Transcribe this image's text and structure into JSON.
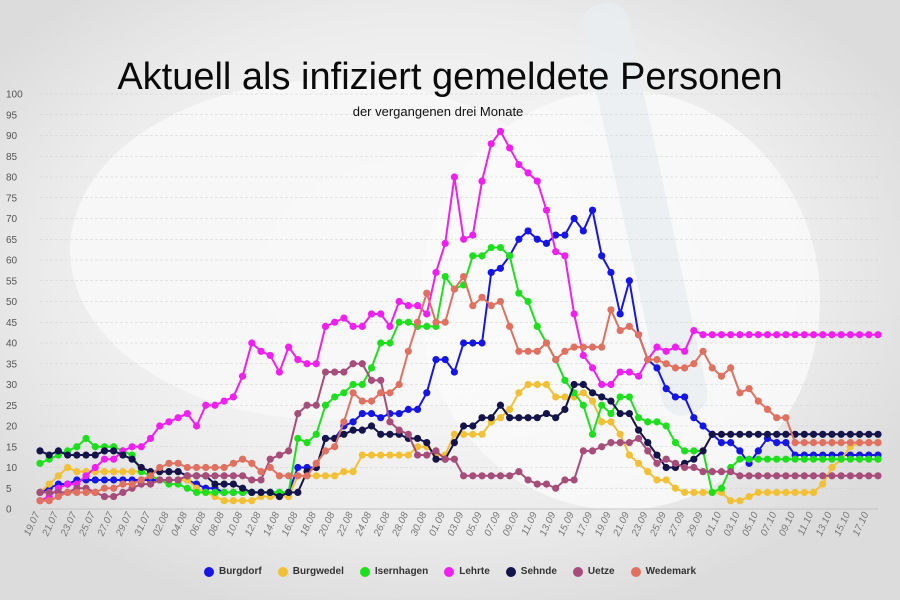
{
  "chart_data": {
    "type": "line",
    "title": "Aktuell als infiziert gemeldete Personen",
    "subtitle": "der vergangenen drei Monate",
    "xlabel": "",
    "ylabel": "",
    "ylim": [
      0,
      100
    ],
    "yticks": [
      "0",
      "5",
      "10",
      "15",
      "20",
      "25",
      "30",
      "35",
      "40",
      "45",
      "50",
      "55",
      "60",
      "65",
      "70",
      "75",
      "80",
      "85",
      "90",
      "95",
      "100"
    ],
    "grid": "horizontal",
    "legend_position": "bottom",
    "x": [
      "19.07",
      "20.07",
      "21.07",
      "22.07",
      "23.07",
      "24.07",
      "25.07",
      "26.07",
      "27.07",
      "28.07",
      "29.07",
      "30.07",
      "31.07",
      "01.08",
      "02.08",
      "03.08",
      "04.08",
      "05.08",
      "06.08",
      "07.08",
      "08.08",
      "09.08",
      "10.08",
      "11.08",
      "12.08",
      "13.08",
      "14.08",
      "15.08",
      "16.08",
      "17.08",
      "18.08",
      "19.08",
      "20.08",
      "21.08",
      "22.08",
      "23.08",
      "24.08",
      "25.08",
      "26.08",
      "27.08",
      "28.08",
      "29.08",
      "30.08",
      "31.08",
      "01.09",
      "02.09",
      "03.09",
      "04.09",
      "05.09",
      "06.09",
      "07.09",
      "08.09",
      "09.09",
      "10.09",
      "11.09",
      "12.09",
      "13.09",
      "14.09",
      "15.09",
      "16.09",
      "17.09",
      "18.09",
      "19.09",
      "20.09",
      "21.09",
      "22.09",
      "23.09",
      "24.09",
      "25.09",
      "26.09",
      "27.09",
      "28.09",
      "29.09",
      "30.09",
      "01.10",
      "02.10",
      "03.10",
      "04.10",
      "05.10",
      "06.10",
      "07.10",
      "08.10",
      "09.10",
      "10.10",
      "11.10",
      "12.10",
      "13.10",
      "14.10",
      "15.10",
      "16.10",
      "17.10",
      "18.10"
    ],
    "x_labels_every": 2,
    "series": [
      {
        "name": "Burgdorf",
        "color": "#1515e6",
        "values": [
          4,
          5,
          6,
          6,
          7,
          7,
          7,
          7,
          7,
          7,
          7,
          7,
          7,
          7,
          7,
          7,
          7,
          6,
          5,
          5,
          4,
          4,
          4,
          4,
          4,
          4,
          4,
          4,
          10,
          10,
          10,
          17,
          17,
          20,
          21,
          23,
          23,
          22,
          23,
          23,
          24,
          24,
          28,
          36,
          36,
          33,
          40,
          40,
          40,
          57,
          58,
          61,
          65,
          67,
          65,
          64,
          66,
          66,
          70,
          67,
          72,
          61,
          57,
          47,
          55,
          42,
          36,
          34,
          29,
          27,
          27,
          22,
          20,
          18,
          16,
          16,
          14,
          11,
          14,
          17,
          16,
          16,
          13,
          13,
          13,
          13,
          13,
          13,
          13,
          13,
          13,
          13
        ]
      },
      {
        "name": "Burgwedel",
        "color": "#f2c035",
        "values": [
          4,
          6,
          8,
          10,
          9,
          9,
          9,
          9,
          9,
          9,
          9,
          9,
          8,
          7,
          7,
          7,
          7,
          5,
          4,
          3,
          2,
          2,
          2,
          2,
          3,
          3,
          3,
          3,
          8,
          8,
          8,
          8,
          8,
          9,
          9,
          13,
          13,
          13,
          13,
          13,
          13,
          15,
          15,
          13,
          13,
          18,
          18,
          18,
          18,
          21,
          22,
          24,
          28,
          30,
          30,
          30,
          27,
          27,
          27,
          28,
          26,
          21,
          21,
          18,
          13,
          11,
          9,
          7,
          7,
          5,
          4,
          4,
          4,
          4,
          4,
          2,
          2,
          3,
          4,
          4,
          4,
          4,
          4,
          4,
          4,
          6,
          10,
          12,
          15,
          16,
          16,
          16
        ]
      },
      {
        "name": "Isernhagen",
        "color": "#1de01d",
        "values": [
          11,
          12,
          13,
          14,
          15,
          17,
          15,
          15,
          15,
          14,
          13,
          9,
          8,
          7,
          6,
          6,
          5,
          4,
          4,
          4,
          4,
          4,
          4,
          4,
          4,
          4,
          4,
          4,
          17,
          16,
          18,
          25,
          27,
          28,
          30,
          30,
          34,
          40,
          40,
          45,
          45,
          44,
          44,
          44,
          56,
          53,
          54,
          61,
          61,
          63,
          63,
          61,
          52,
          50,
          44,
          40,
          36,
          31,
          28,
          25,
          18,
          25,
          23,
          27,
          27,
          22,
          21,
          21,
          20,
          16,
          14,
          14,
          14,
          4,
          5,
          10,
          12,
          12,
          12,
          12,
          12,
          12,
          12,
          12,
          12,
          12,
          12,
          12,
          12,
          12,
          12,
          12
        ]
      },
      {
        "name": "Lehrte",
        "color": "#f01ef0",
        "values": [
          2,
          3,
          5,
          6,
          6,
          8,
          10,
          12,
          12,
          14,
          15,
          15,
          17,
          20,
          21,
          22,
          23,
          20,
          25,
          25,
          26,
          27,
          32,
          40,
          38,
          37,
          33,
          39,
          36,
          35,
          35,
          44,
          45,
          46,
          44,
          44,
          47,
          47,
          44,
          50,
          49,
          49,
          47,
          57,
          64,
          80,
          65,
          66,
          79,
          88,
          91,
          87,
          83,
          81,
          79,
          72,
          62,
          61,
          47,
          37,
          34,
          30,
          30,
          33,
          33,
          32,
          36,
          39,
          38,
          39,
          38,
          43,
          42,
          42,
          42,
          42,
          42,
          42,
          42,
          42,
          42,
          42,
          42,
          42,
          42,
          42,
          42,
          42,
          42,
          42,
          42,
          42
        ]
      },
      {
        "name": "Sehnde",
        "color": "#14144a",
        "values": [
          14,
          13,
          14,
          13,
          13,
          13,
          13,
          14,
          14,
          13,
          12,
          10,
          9,
          9,
          9,
          9,
          8,
          8,
          8,
          6,
          6,
          6,
          5,
          4,
          4,
          4,
          3,
          4,
          4,
          9,
          10,
          17,
          17,
          18,
          19,
          19,
          20,
          18,
          18,
          18,
          17,
          17,
          16,
          12,
          12,
          16,
          20,
          20,
          22,
          22,
          25,
          22,
          22,
          22,
          22,
          23,
          22,
          24,
          30,
          30,
          28,
          27,
          26,
          23,
          23,
          19,
          16,
          13,
          10,
          10,
          11,
          12,
          14,
          18,
          18,
          18,
          18,
          18,
          18,
          18,
          18,
          18,
          18,
          18,
          18,
          18,
          18,
          18,
          18,
          18,
          18,
          18
        ]
      },
      {
        "name": "Uetze",
        "color": "#a64d7a",
        "values": [
          4,
          4,
          4,
          4,
          5,
          5,
          4,
          3,
          3,
          4,
          5,
          6,
          6,
          7,
          7,
          7,
          8,
          8,
          8,
          8,
          8,
          8,
          8,
          7,
          7,
          12,
          13,
          14,
          23,
          25,
          25,
          33,
          33,
          33,
          35,
          35,
          31,
          31,
          21,
          19,
          18,
          13,
          13,
          14,
          12,
          12,
          8,
          8,
          8,
          8,
          8,
          8,
          9,
          7,
          6,
          6,
          5,
          7,
          7,
          14,
          14,
          15,
          16,
          16,
          16,
          17,
          14,
          11,
          12,
          11,
          10,
          10,
          9,
          9,
          9,
          9,
          8,
          8,
          8,
          8,
          8,
          8,
          8,
          8,
          8,
          8,
          8,
          8,
          8,
          8,
          8,
          8
        ]
      },
      {
        "name": "Wedemark",
        "color": "#e07060",
        "values": [
          2,
          2,
          3,
          4,
          4,
          4,
          4,
          5,
          5,
          6,
          6,
          7,
          8,
          10,
          11,
          11,
          10,
          10,
          10,
          10,
          10,
          11,
          12,
          11,
          9,
          10,
          8,
          8,
          8,
          8,
          11,
          14,
          15,
          21,
          28,
          26,
          26,
          28,
          28,
          30,
          38,
          45,
          52,
          45,
          45,
          53,
          56,
          49,
          51,
          49,
          50,
          44,
          38,
          38,
          38,
          40,
          36,
          38,
          39,
          39,
          39,
          39,
          48,
          43,
          44,
          42,
          36,
          36,
          35,
          34,
          34,
          35,
          38,
          34,
          32,
          34,
          28,
          29,
          26,
          24,
          22,
          22,
          16,
          16,
          16,
          16,
          16,
          16,
          16,
          16,
          16,
          16
        ]
      }
    ]
  }
}
